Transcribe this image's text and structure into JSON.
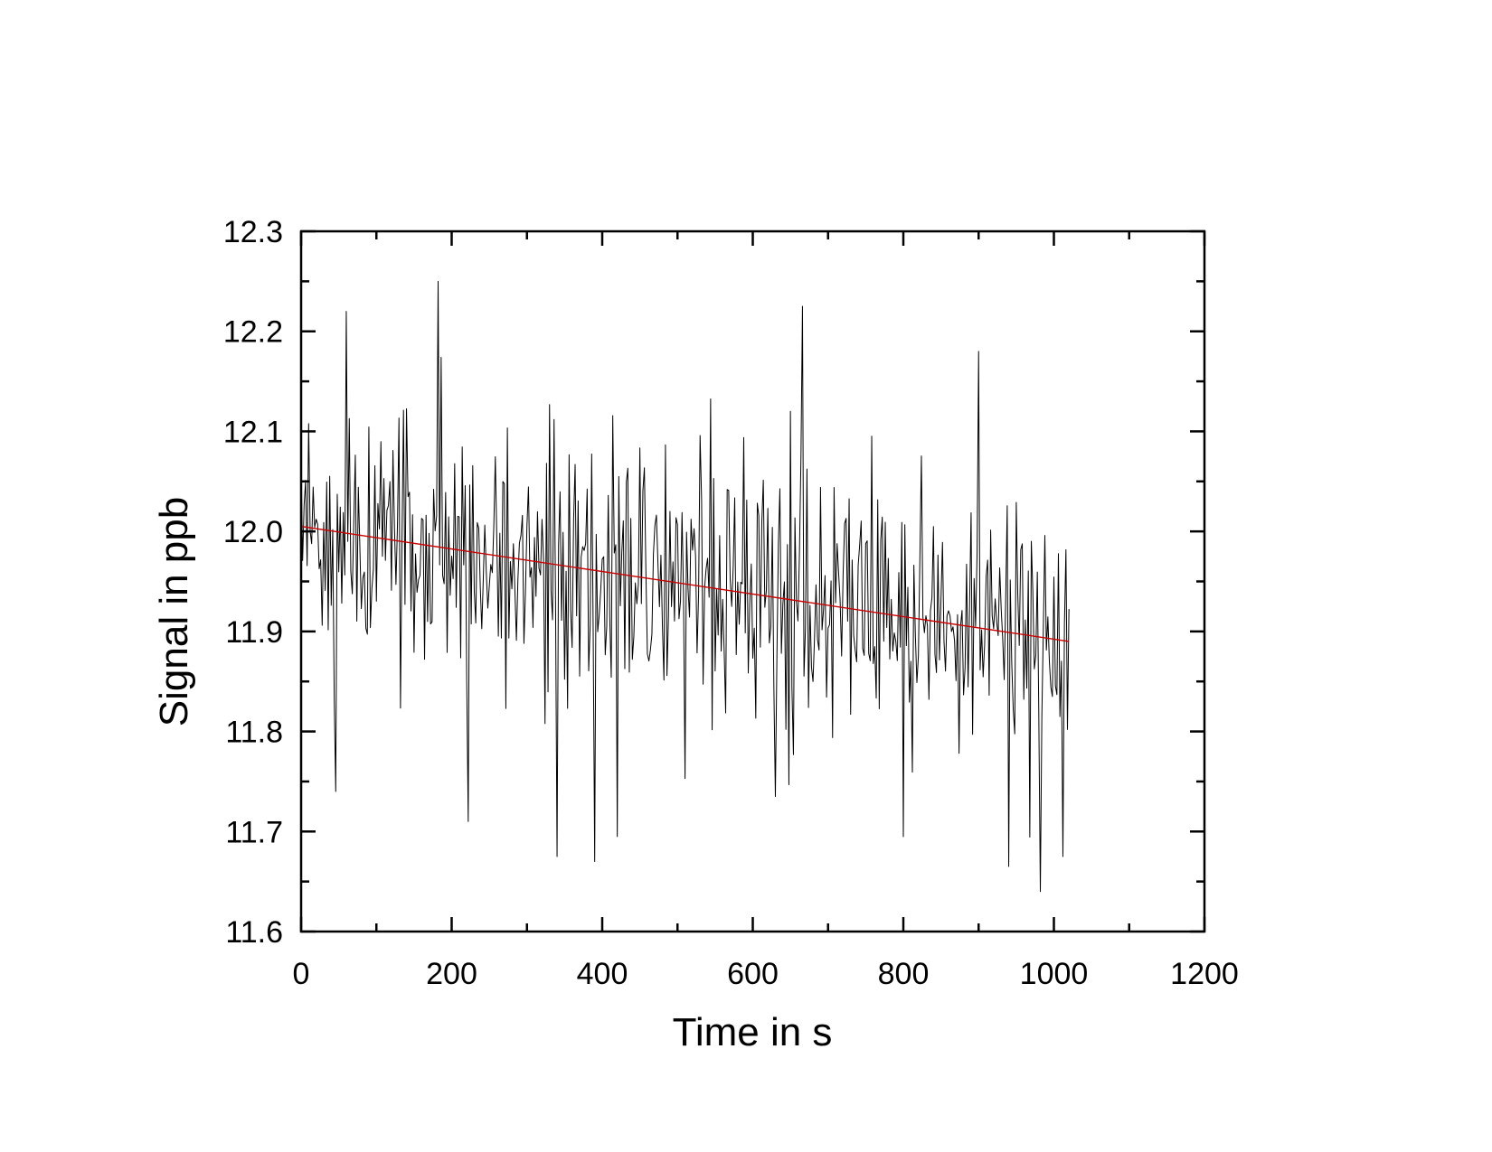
{
  "chart_data": {
    "type": "line",
    "title": "",
    "xlabel": "Time in s",
    "ylabel": "Signal in ppb",
    "xlim": [
      0,
      1200
    ],
    "ylim": [
      11.6,
      12.3
    ],
    "x_ticks": [
      0,
      200,
      400,
      600,
      800,
      1000,
      1200
    ],
    "x_tick_labels": [
      "0",
      "200",
      "400",
      "600",
      "800",
      "1000",
      "1200"
    ],
    "y_ticks": [
      11.6,
      11.7,
      11.8,
      11.9,
      12.0,
      12.1,
      12.2,
      12.3
    ],
    "y_tick_labels": [
      "11.6",
      "11.7",
      "11.8",
      "11.9",
      "12.0",
      "12.1",
      "12.2",
      "12.3"
    ],
    "x_minor_step": 100,
    "y_minor_step": 0.05,
    "grid": false,
    "legend": "none",
    "series": [
      {
        "color": "#000000",
        "x_start": 0,
        "x_end": 1020,
        "x_step": 2,
        "mean_at_start": 12.005,
        "mean_at_end": 11.89,
        "noise_sd": 0.09,
        "peaks": [
          {
            "x": 182,
            "y": 12.25
          },
          {
            "x": 60,
            "y": 12.22
          },
          {
            "x": 666,
            "y": 12.225
          },
          {
            "x": 630,
            "y": 11.735
          },
          {
            "x": 340,
            "y": 11.675
          },
          {
            "x": 390,
            "y": 11.67
          },
          {
            "x": 420,
            "y": 11.695
          },
          {
            "x": 222,
            "y": 11.71
          },
          {
            "x": 46,
            "y": 11.74
          },
          {
            "x": 940,
            "y": 11.665
          },
          {
            "x": 982,
            "y": 11.64
          },
          {
            "x": 855,
            "y": 11.69
          },
          {
            "x": 900,
            "y": 12.18
          },
          {
            "x": 1012,
            "y": 11.675
          }
        ]
      },
      {
        "color": "#cc0000",
        "type": "linear-fit",
        "x": [
          0,
          1020
        ],
        "y": [
          12.005,
          11.89
        ]
      }
    ]
  }
}
